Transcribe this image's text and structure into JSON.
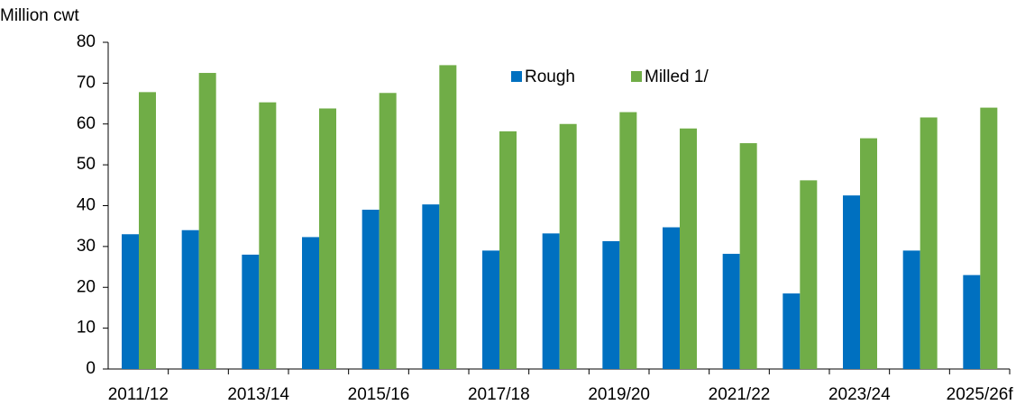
{
  "chart_data": {
    "type": "bar",
    "y_label": "Million cwt",
    "categories": [
      "2011/12",
      null,
      "2013/14",
      null,
      "2015/16",
      null,
      "2017/18",
      null,
      "2019/20",
      null,
      "2021/22",
      null,
      "2023/24",
      null,
      "2025/26f"
    ],
    "series": [
      {
        "name": "Rough",
        "color": "#0070c0",
        "values": [
          33,
          34,
          28,
          32.3,
          39,
          40.3,
          29,
          33.2,
          31.3,
          34.7,
          28.2,
          18.5,
          42.5,
          29,
          23
        ]
      },
      {
        "name": "Milled 1/",
        "color": "#70ad47",
        "values": [
          67.8,
          72.5,
          65.3,
          63.8,
          67.6,
          74.4,
          58.2,
          60,
          62.9,
          58.9,
          55.3,
          46.2,
          56.5,
          61.6,
          64
        ]
      }
    ],
    "ylim": [
      0,
      80
    ],
    "yticks": [
      0,
      10,
      20,
      30,
      40,
      50,
      60,
      70,
      80
    ],
    "grid": false,
    "legend": "top"
  }
}
